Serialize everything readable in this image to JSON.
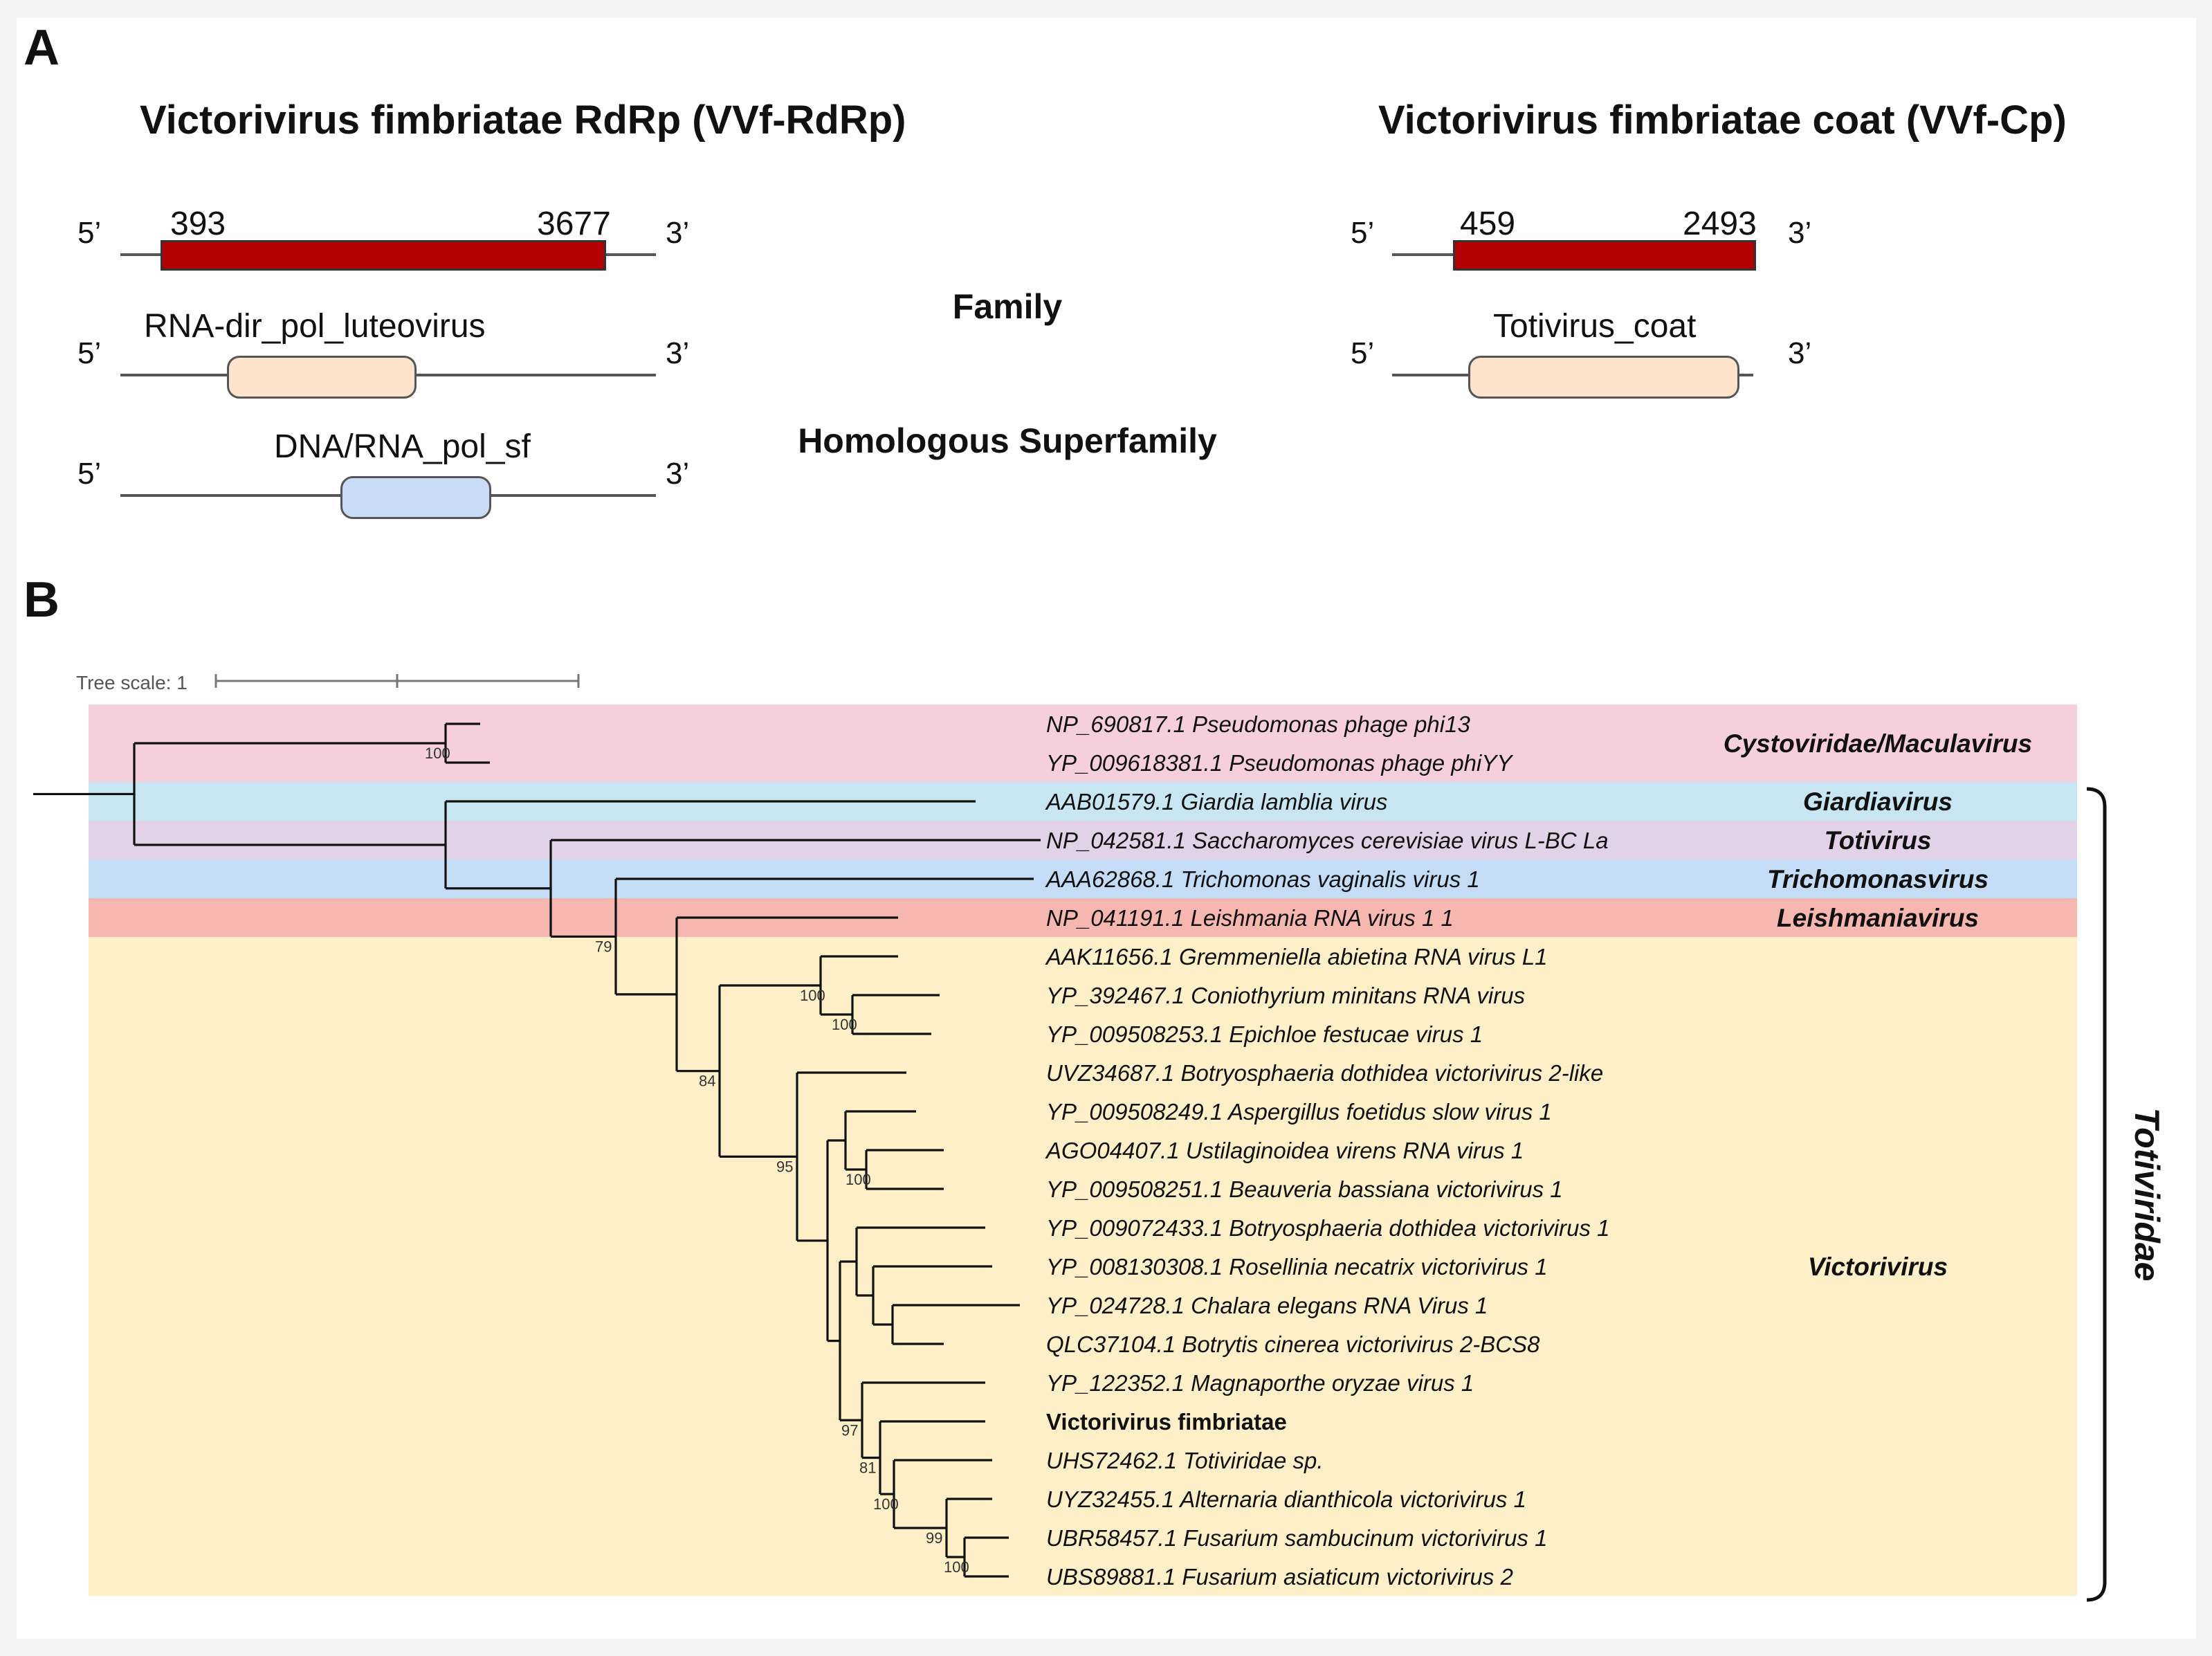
{
  "panel_a": {
    "letter": "A",
    "rdrp": {
      "title": "Victorivirus fimbriatae RdRp (VVf-RdRp)",
      "orf_start": "393",
      "orf_end": "3677",
      "domain_family": "RNA-dir_pol_luteovirus",
      "domain_superfamily": "DNA/RNA_pol_sf"
    },
    "coat": {
      "title": "Victorivirus fimbriatae coat (VVf-Cp)",
      "orf_start": "459",
      "orf_end": "2493",
      "domain_family": "Totivirus_coat"
    },
    "five_prime": "5’",
    "three_prime": "3’",
    "family_label": "Family",
    "superfamily_label": "Homologous Superfamily",
    "colors": {
      "orf": "#b30000",
      "family_domain": "#fde3cc",
      "superfamily_domain": "#c9ddf7"
    }
  },
  "panel_b": {
    "letter": "B",
    "tree_scale_label": "Tree scale: 1",
    "family_label": "Totiviridae",
    "leaves": [
      {
        "label": "NP_690817.1 Pseudomonas phage phi13"
      },
      {
        "label": "YP_009618381.1 Pseudomonas phage phiYY"
      },
      {
        "label": "AAB01579.1 Giardia lamblia virus"
      },
      {
        "label": "NP_042581.1 Saccharomyces cerevisiae virus L-BC La"
      },
      {
        "label": "AAA62868.1 Trichomonas vaginalis virus 1"
      },
      {
        "label": "NP_041191.1 Leishmania RNA virus 1 1"
      },
      {
        "label": "AAK11656.1 Gremmeniella abietina RNA virus L1"
      },
      {
        "label": "YP_392467.1 Coniothyrium minitans RNA virus"
      },
      {
        "label": "YP_009508253.1 Epichloe festucae virus 1"
      },
      {
        "label": "UVZ34687.1 Botryosphaeria dothidea victorivirus 2-like"
      },
      {
        "label": "YP_009508249.1 Aspergillus foetidus slow virus 1"
      },
      {
        "label": "AGO04407.1 Ustilaginoidea virens RNA virus 1"
      },
      {
        "label": "YP_009508251.1 Beauveria bassiana victorivirus 1"
      },
      {
        "label": "YP_009072433.1 Botryosphaeria dothidea victorivirus 1"
      },
      {
        "label": "YP_008130308.1 Rosellinia necatrix victorivirus 1"
      },
      {
        "label": "YP_024728.1 Chalara elegans RNA Virus 1"
      },
      {
        "label": "QLC37104.1 Botrytis cinerea victorivirus 2-BCS8"
      },
      {
        "label": "YP_122352.1 Magnaporthe oryzae virus 1"
      },
      {
        "label": "Victorivirus fimbriatae",
        "bold": true
      },
      {
        "label": "UHS72462.1 Totiviridae sp."
      },
      {
        "label": "UYZ32455.1 Alternaria dianthicola victorivirus 1"
      },
      {
        "label": "UBR58457.1 Fusarium sambucinum victorivirus 1"
      },
      {
        "label": "UBS89881.1 Fusarium asiaticum victorivirus 2"
      }
    ],
    "clades": [
      {
        "name": "Cystoviridae/Maculavirus",
        "color": "#f5d0dc"
      },
      {
        "name": "Giardiavirus",
        "color": "#c8e6f2"
      },
      {
        "name": "Totivirus",
        "color": "#e2d2e8"
      },
      {
        "name": "Trichomonasvirus",
        "color": "#c4dcf5"
      },
      {
        "name": "Leishmaniavirus",
        "color": "#f5b7b0"
      },
      {
        "name": "Victorivirus",
        "color": "#fdf0c8"
      }
    ],
    "bootstrap": [
      "100",
      "79",
      "100",
      "100",
      "84",
      "100",
      "95",
      "97",
      "81",
      "100",
      "99",
      "100"
    ]
  }
}
